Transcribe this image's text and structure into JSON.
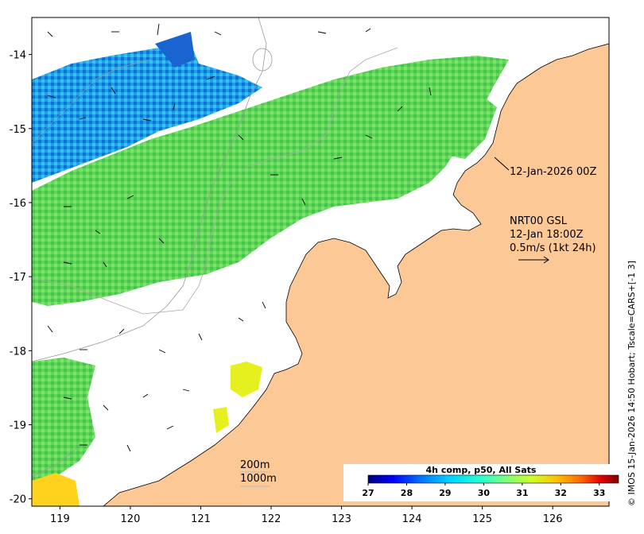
{
  "map": {
    "lon_range": [
      118.6,
      126.8
    ],
    "lat_range": [
      -20.1,
      -13.5
    ],
    "x_ticks": [
      119,
      120,
      121,
      122,
      123,
      124,
      125,
      126
    ],
    "y_ticks": [
      -14,
      -15,
      -16,
      -17,
      -18,
      -19,
      -20
    ],
    "land_color": "#fcc896",
    "sea_color": "#ffffff"
  },
  "annotations": {
    "date_label": "12-Jan-2026 00Z",
    "model_line1": "NRT00 GSL",
    "model_line2": "12-Jan 18:00Z",
    "model_line3": "0.5m/s (1kt 24h)",
    "contour_200": "200m",
    "contour_1000": "1000m"
  },
  "colorbar": {
    "title": "4h comp, p50, All Sats",
    "ticks": [
      "27",
      "28",
      "29",
      "30",
      "31",
      "32",
      "33"
    ],
    "range": [
      27,
      33.5
    ],
    "colors": [
      "#00007f",
      "#0000ff",
      "#007fff",
      "#00d4ff",
      "#29ffce",
      "#7dff7a",
      "#ceff29",
      "#ffc400",
      "#ff6800",
      "#e00000",
      "#7f0000"
    ]
  },
  "credit": "© IMOS 15-Jan-2026 14:50 Hobart; Tscale=CARS+[-1 3]"
}
